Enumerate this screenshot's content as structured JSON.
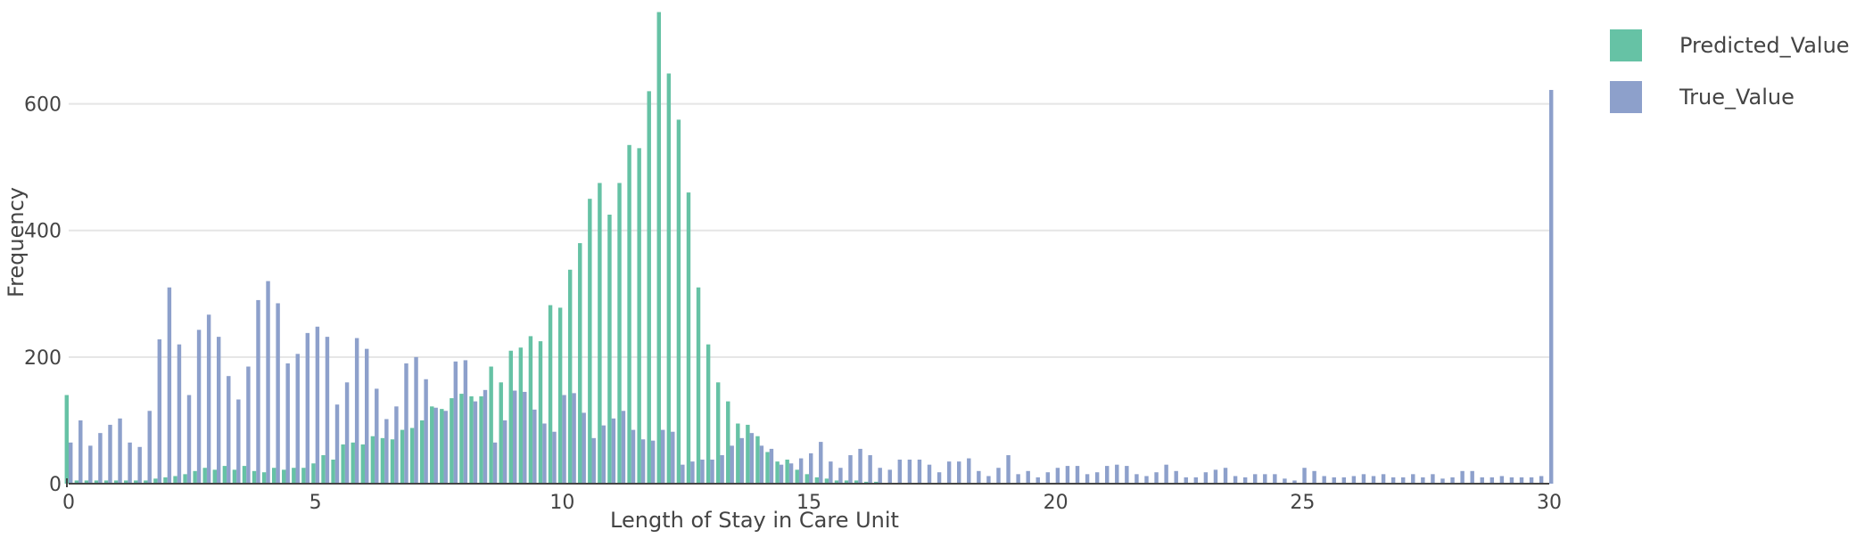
{
  "chart_data": {
    "type": "bar",
    "title": "",
    "xlabel": "Length of Stay in Care Unit",
    "ylabel": "Frequency",
    "xlim": [
      0,
      30
    ],
    "ylim": [
      0,
      750
    ],
    "xticks": [
      0,
      5,
      10,
      15,
      20,
      25,
      30
    ],
    "yticks": [
      0,
      200,
      400,
      600
    ],
    "grid": "horizontal",
    "legend": "top-right",
    "bin_width": 0.2,
    "series": [
      {
        "name": "Predicted_Value",
        "color": "#66c2a5",
        "points": [
          [
            0.0,
            140
          ],
          [
            0.2,
            5
          ],
          [
            0.4,
            5
          ],
          [
            0.6,
            5
          ],
          [
            0.8,
            5
          ],
          [
            1.0,
            5
          ],
          [
            1.2,
            5
          ],
          [
            1.4,
            5
          ],
          [
            1.6,
            5
          ],
          [
            1.8,
            8
          ],
          [
            2.0,
            10
          ],
          [
            2.2,
            12
          ],
          [
            2.4,
            15
          ],
          [
            2.6,
            20
          ],
          [
            2.8,
            25
          ],
          [
            3.0,
            22
          ],
          [
            3.2,
            28
          ],
          [
            3.4,
            22
          ],
          [
            3.6,
            28
          ],
          [
            3.8,
            20
          ],
          [
            4.0,
            18
          ],
          [
            4.2,
            25
          ],
          [
            4.4,
            22
          ],
          [
            4.6,
            25
          ],
          [
            4.8,
            25
          ],
          [
            5.0,
            32
          ],
          [
            5.2,
            45
          ],
          [
            5.4,
            38
          ],
          [
            5.6,
            62
          ],
          [
            5.8,
            65
          ],
          [
            6.0,
            62
          ],
          [
            6.2,
            75
          ],
          [
            6.4,
            72
          ],
          [
            6.6,
            70
          ],
          [
            6.8,
            85
          ],
          [
            7.0,
            88
          ],
          [
            7.2,
            100
          ],
          [
            7.4,
            122
          ],
          [
            7.6,
            118
          ],
          [
            7.8,
            135
          ],
          [
            8.0,
            142
          ],
          [
            8.2,
            138
          ],
          [
            8.4,
            138
          ],
          [
            8.6,
            185
          ],
          [
            8.8,
            160
          ],
          [
            9.0,
            210
          ],
          [
            9.2,
            215
          ],
          [
            9.4,
            233
          ],
          [
            9.6,
            225
          ],
          [
            9.8,
            282
          ],
          [
            10.0,
            278
          ],
          [
            10.2,
            338
          ],
          [
            10.4,
            380
          ],
          [
            10.6,
            450
          ],
          [
            10.8,
            475
          ],
          [
            11.0,
            425
          ],
          [
            11.2,
            475
          ],
          [
            11.4,
            535
          ],
          [
            11.6,
            530
          ],
          [
            11.8,
            620
          ],
          [
            12.0,
            745
          ],
          [
            12.2,
            648
          ],
          [
            12.4,
            575
          ],
          [
            12.6,
            460
          ],
          [
            12.8,
            310
          ],
          [
            13.0,
            220
          ],
          [
            13.2,
            160
          ],
          [
            13.4,
            130
          ],
          [
            13.6,
            95
          ],
          [
            13.8,
            93
          ],
          [
            14.0,
            75
          ],
          [
            14.2,
            50
          ],
          [
            14.4,
            35
          ],
          [
            14.6,
            38
          ],
          [
            14.8,
            22
          ],
          [
            15.0,
            15
          ],
          [
            15.2,
            10
          ],
          [
            15.4,
            8
          ],
          [
            15.6,
            5
          ],
          [
            15.8,
            5
          ],
          [
            16.0,
            5
          ],
          [
            16.2,
            3
          ],
          [
            16.4,
            3
          ]
        ]
      },
      {
        "name": "True_Value",
        "color": "#8da0cb",
        "points": [
          [
            0.0,
            65
          ],
          [
            0.2,
            100
          ],
          [
            0.4,
            60
          ],
          [
            0.6,
            80
          ],
          [
            0.8,
            93
          ],
          [
            1.0,
            103
          ],
          [
            1.2,
            65
          ],
          [
            1.4,
            58
          ],
          [
            1.6,
            115
          ],
          [
            1.8,
            228
          ],
          [
            2.0,
            310
          ],
          [
            2.2,
            220
          ],
          [
            2.4,
            140
          ],
          [
            2.6,
            243
          ],
          [
            2.8,
            267
          ],
          [
            3.0,
            232
          ],
          [
            3.2,
            170
          ],
          [
            3.4,
            133
          ],
          [
            3.6,
            185
          ],
          [
            3.8,
            290
          ],
          [
            4.0,
            320
          ],
          [
            4.2,
            285
          ],
          [
            4.4,
            190
          ],
          [
            4.6,
            205
          ],
          [
            4.8,
            238
          ],
          [
            5.0,
            248
          ],
          [
            5.2,
            232
          ],
          [
            5.4,
            125
          ],
          [
            5.6,
            160
          ],
          [
            5.8,
            230
          ],
          [
            6.0,
            213
          ],
          [
            6.2,
            150
          ],
          [
            6.4,
            102
          ],
          [
            6.6,
            122
          ],
          [
            6.8,
            190
          ],
          [
            7.0,
            200
          ],
          [
            7.2,
            165
          ],
          [
            7.4,
            120
          ],
          [
            7.6,
            115
          ],
          [
            7.8,
            193
          ],
          [
            8.0,
            195
          ],
          [
            8.2,
            130
          ],
          [
            8.4,
            148
          ],
          [
            8.6,
            65
          ],
          [
            8.8,
            100
          ],
          [
            9.0,
            147
          ],
          [
            9.2,
            145
          ],
          [
            9.4,
            117
          ],
          [
            9.6,
            95
          ],
          [
            9.8,
            82
          ],
          [
            10.0,
            140
          ],
          [
            10.2,
            143
          ],
          [
            10.4,
            112
          ],
          [
            10.6,
            72
          ],
          [
            10.8,
            92
          ],
          [
            11.0,
            103
          ],
          [
            11.2,
            115
          ],
          [
            11.4,
            85
          ],
          [
            11.6,
            70
          ],
          [
            11.8,
            68
          ],
          [
            12.0,
            85
          ],
          [
            12.2,
            82
          ],
          [
            12.4,
            30
          ],
          [
            12.6,
            35
          ],
          [
            12.8,
            38
          ],
          [
            13.0,
            38
          ],
          [
            13.2,
            45
          ],
          [
            13.4,
            60
          ],
          [
            13.6,
            72
          ],
          [
            13.8,
            80
          ],
          [
            14.0,
            60
          ],
          [
            14.2,
            55
          ],
          [
            14.4,
            30
          ],
          [
            14.6,
            32
          ],
          [
            14.8,
            40
          ],
          [
            15.0,
            48
          ],
          [
            15.2,
            66
          ],
          [
            15.4,
            35
          ],
          [
            15.6,
            25
          ],
          [
            15.8,
            45
          ],
          [
            16.0,
            55
          ],
          [
            16.2,
            45
          ],
          [
            16.4,
            25
          ],
          [
            16.6,
            22
          ],
          [
            16.8,
            38
          ],
          [
            17.0,
            38
          ],
          [
            17.2,
            38
          ],
          [
            17.4,
            30
          ],
          [
            17.6,
            18
          ],
          [
            17.8,
            35
          ],
          [
            18.0,
            35
          ],
          [
            18.2,
            40
          ],
          [
            18.4,
            20
          ],
          [
            18.6,
            12
          ],
          [
            18.8,
            25
          ],
          [
            19.0,
            45
          ],
          [
            19.2,
            15
          ],
          [
            19.4,
            20
          ],
          [
            19.6,
            10
          ],
          [
            19.8,
            18
          ],
          [
            20.0,
            25
          ],
          [
            20.2,
            28
          ],
          [
            20.4,
            28
          ],
          [
            20.6,
            15
          ],
          [
            20.8,
            18
          ],
          [
            21.0,
            28
          ],
          [
            21.2,
            30
          ],
          [
            21.4,
            28
          ],
          [
            21.6,
            15
          ],
          [
            21.8,
            12
          ],
          [
            22.0,
            18
          ],
          [
            22.2,
            30
          ],
          [
            22.4,
            20
          ],
          [
            22.6,
            10
          ],
          [
            22.8,
            10
          ],
          [
            23.0,
            18
          ],
          [
            23.2,
            22
          ],
          [
            23.4,
            25
          ],
          [
            23.6,
            12
          ],
          [
            23.8,
            10
          ],
          [
            24.0,
            15
          ],
          [
            24.2,
            15
          ],
          [
            24.4,
            15
          ],
          [
            24.6,
            8
          ],
          [
            24.8,
            5
          ],
          [
            25.0,
            25
          ],
          [
            25.2,
            20
          ],
          [
            25.4,
            12
          ],
          [
            25.6,
            10
          ],
          [
            25.8,
            10
          ],
          [
            26.0,
            12
          ],
          [
            26.2,
            15
          ],
          [
            26.4,
            12
          ],
          [
            26.6,
            15
          ],
          [
            26.8,
            10
          ],
          [
            27.0,
            10
          ],
          [
            27.2,
            15
          ],
          [
            27.4,
            10
          ],
          [
            27.6,
            15
          ],
          [
            27.8,
            8
          ],
          [
            28.0,
            10
          ],
          [
            28.2,
            20
          ],
          [
            28.4,
            20
          ],
          [
            28.6,
            10
          ],
          [
            28.8,
            10
          ],
          [
            29.0,
            12
          ],
          [
            29.2,
            10
          ],
          [
            29.4,
            10
          ],
          [
            29.6,
            10
          ],
          [
            29.8,
            12
          ],
          [
            30.0,
            622
          ]
        ]
      }
    ]
  }
}
